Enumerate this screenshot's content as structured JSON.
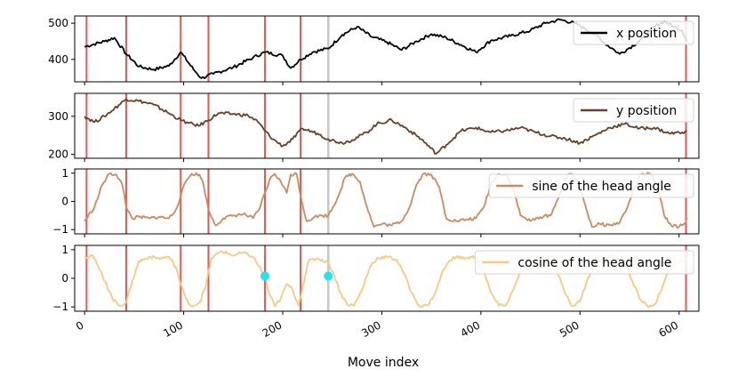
{
  "chart_data": {
    "type": "line",
    "xlabel": "Move index",
    "xlim": [
      -10,
      620
    ],
    "xticks": [
      0,
      100,
      200,
      300,
      400,
      500,
      600
    ],
    "xtick_labels": [
      "0",
      "100",
      "200",
      "300",
      "400",
      "500",
      "600"
    ],
    "xtick_rotation_deg": 30,
    "vlines": {
      "red": {
        "color": "#e8413c",
        "x": [
          2,
          42,
          97,
          125,
          182,
          218,
          607
        ]
      },
      "gray": {
        "color": "#c8c8c8",
        "x": [
          246
        ]
      }
    },
    "panels": [
      {
        "series_name": "x position",
        "color": "#000000",
        "ylim": [
          338,
          520
        ],
        "yticks": [
          400,
          500
        ],
        "ytick_labels": [
          "400",
          "500"
        ],
        "legend_position": "upper-right",
        "points": [
          [
            0,
            435
          ],
          [
            20,
            450
          ],
          [
            30,
            460
          ],
          [
            42,
            415
          ],
          [
            55,
            380
          ],
          [
            70,
            372
          ],
          [
            85,
            382
          ],
          [
            97,
            420
          ],
          [
            110,
            372
          ],
          [
            118,
            348
          ],
          [
            130,
            360
          ],
          [
            150,
            378
          ],
          [
            170,
            405
          ],
          [
            182,
            420
          ],
          [
            200,
            410
          ],
          [
            208,
            376
          ],
          [
            218,
            400
          ],
          [
            230,
            420
          ],
          [
            246,
            430
          ],
          [
            260,
            468
          ],
          [
            275,
            490
          ],
          [
            290,
            462
          ],
          [
            305,
            448
          ],
          [
            320,
            426
          ],
          [
            335,
            450
          ],
          [
            350,
            470
          ],
          [
            365,
            460
          ],
          [
            380,
            440
          ],
          [
            395,
            420
          ],
          [
            410,
            452
          ],
          [
            430,
            465
          ],
          [
            450,
            480
          ],
          [
            465,
            500
          ],
          [
            480,
            510
          ],
          [
            495,
            500
          ],
          [
            505,
            485
          ],
          [
            515,
            470
          ],
          [
            525,
            445
          ],
          [
            535,
            425
          ],
          [
            540,
            415
          ],
          [
            550,
            432
          ],
          [
            565,
            460
          ],
          [
            575,
            490
          ],
          [
            585,
            505
          ],
          [
            595,
            490
          ],
          [
            603,
            480
          ],
          [
            608,
            450
          ]
        ],
        "markers": []
      },
      {
        "series_name": "y position",
        "color": "#6b3f25",
        "ylim": [
          190,
          360
        ],
        "yticks": [
          200,
          300
        ],
        "ytick_labels": [
          "200",
          "300"
        ],
        "legend_position": "upper-right",
        "points": [
          [
            0,
            300
          ],
          [
            10,
            285
          ],
          [
            20,
            300
          ],
          [
            30,
            320
          ],
          [
            42,
            345
          ],
          [
            55,
            340
          ],
          [
            70,
            330
          ],
          [
            85,
            308
          ],
          [
            97,
            290
          ],
          [
            105,
            282
          ],
          [
            115,
            275
          ],
          [
            125,
            290
          ],
          [
            135,
            308
          ],
          [
            150,
            306
          ],
          [
            165,
            302
          ],
          [
            175,
            285
          ],
          [
            182,
            262
          ],
          [
            190,
            240
          ],
          [
            200,
            222
          ],
          [
            210,
            240
          ],
          [
            220,
            268
          ],
          [
            235,
            255
          ],
          [
            246,
            240
          ],
          [
            260,
            230
          ],
          [
            270,
            238
          ],
          [
            285,
            258
          ],
          [
            295,
            280
          ],
          [
            310,
            290
          ],
          [
            325,
            268
          ],
          [
            340,
            240
          ],
          [
            355,
            202
          ],
          [
            365,
            225
          ],
          [
            380,
            262
          ],
          [
            395,
            270
          ],
          [
            410,
            258
          ],
          [
            425,
            262
          ],
          [
            440,
            270
          ],
          [
            455,
            258
          ],
          [
            470,
            248
          ],
          [
            485,
            242
          ],
          [
            500,
            230
          ],
          [
            515,
            250
          ],
          [
            530,
            270
          ],
          [
            545,
            280
          ],
          [
            560,
            268
          ],
          [
            575,
            270
          ],
          [
            590,
            255
          ],
          [
            603,
            258
          ],
          [
            608,
            262
          ]
        ],
        "markers": []
      },
      {
        "series_name": "sine of the head angle",
        "color": "#d0895a",
        "ylim": [
          -1.15,
          1.15
        ],
        "yticks": [
          -1,
          0,
          1
        ],
        "ytick_labels": [
          "−1",
          "0",
          "1"
        ],
        "legend_position": "upper-right",
        "points": [
          [
            0,
            -0.7
          ],
          [
            10,
            -0.2
          ],
          [
            18,
            0.6
          ],
          [
            25,
            0.98
          ],
          [
            32,
            0.95
          ],
          [
            38,
            0.6
          ],
          [
            42,
            -0.2
          ],
          [
            48,
            -0.6
          ],
          [
            55,
            -0.55
          ],
          [
            65,
            -0.6
          ],
          [
            75,
            -0.55
          ],
          [
            85,
            -0.6
          ],
          [
            92,
            -0.3
          ],
          [
            97,
            0.2
          ],
          [
            102,
            0.7
          ],
          [
            108,
            0.98
          ],
          [
            116,
            0.95
          ],
          [
            120,
            0.6
          ],
          [
            125,
            -0.3
          ],
          [
            132,
            -0.85
          ],
          [
            140,
            -0.6
          ],
          [
            150,
            -0.5
          ],
          [
            160,
            -0.45
          ],
          [
            170,
            -0.6
          ],
          [
            176,
            -0.3
          ],
          [
            182,
            0.3
          ],
          [
            188,
            0.85
          ],
          [
            192,
            0.98
          ],
          [
            198,
            0.7
          ],
          [
            204,
            0.3
          ],
          [
            208,
            0.95
          ],
          [
            214,
            0.98
          ],
          [
            218,
            0.2
          ],
          [
            224,
            -0.7
          ],
          [
            232,
            -0.55
          ],
          [
            240,
            -0.5
          ],
          [
            246,
            -0.5
          ],
          [
            255,
            0.1
          ],
          [
            263,
            0.85
          ],
          [
            270,
            0.98
          ],
          [
            278,
            0.7
          ],
          [
            285,
            -0.2
          ],
          [
            292,
            -0.9
          ],
          [
            300,
            -0.8
          ],
          [
            310,
            -0.85
          ],
          [
            320,
            -0.7
          ],
          [
            328,
            -0.2
          ],
          [
            335,
            0.6
          ],
          [
            342,
            0.98
          ],
          [
            350,
            0.95
          ],
          [
            358,
            0.5
          ],
          [
            365,
            -0.6
          ],
          [
            375,
            -0.7
          ],
          [
            385,
            -0.65
          ],
          [
            395,
            -0.6
          ],
          [
            403,
            -0.2
          ],
          [
            410,
            0.6
          ],
          [
            418,
            0.98
          ],
          [
            426,
            0.95
          ],
          [
            433,
            0.4
          ],
          [
            440,
            -0.5
          ],
          [
            450,
            -0.7
          ],
          [
            460,
            -0.55
          ],
          [
            470,
            -0.5
          ],
          [
            478,
            0.1
          ],
          [
            485,
            0.8
          ],
          [
            490,
            0.98
          ],
          [
            498,
            0.7
          ],
          [
            505,
            -0.1
          ],
          [
            512,
            -0.9
          ],
          [
            520,
            -0.8
          ],
          [
            530,
            -0.85
          ],
          [
            540,
            -0.75
          ],
          [
            548,
            -0.2
          ],
          [
            555,
            0.5
          ],
          [
            562,
            0.95
          ],
          [
            570,
            0.98
          ],
          [
            578,
            0.6
          ],
          [
            585,
            -0.5
          ],
          [
            592,
            -0.85
          ],
          [
            600,
            -0.9
          ],
          [
            605,
            -0.8
          ],
          [
            608,
            -0.6
          ]
        ],
        "markers": []
      },
      {
        "series_name": "cosine of the head angle",
        "color": "#fdc87e",
        "ylim": [
          -1.15,
          1.15
        ],
        "yticks": [
          -1,
          0,
          1
        ],
        "ytick_labels": [
          "−1",
          "0",
          "1"
        ],
        "legend_position": "upper-right",
        "points": [
          [
            0,
            0.75
          ],
          [
            8,
            0.8
          ],
          [
            15,
            0.3
          ],
          [
            22,
            -0.2
          ],
          [
            28,
            -0.7
          ],
          [
            35,
            -0.95
          ],
          [
            42,
            -0.85
          ],
          [
            48,
            -0.1
          ],
          [
            55,
            0.6
          ],
          [
            65,
            0.75
          ],
          [
            75,
            0.7
          ],
          [
            85,
            0.75
          ],
          [
            92,
            0.4
          ],
          [
            97,
            -0.2
          ],
          [
            102,
            -0.7
          ],
          [
            108,
            -0.98
          ],
          [
            116,
            -0.85
          ],
          [
            122,
            -0.3
          ],
          [
            128,
            0.7
          ],
          [
            138,
            0.95
          ],
          [
            150,
            0.8
          ],
          [
            160,
            0.9
          ],
          [
            170,
            0.75
          ],
          [
            178,
            0.3
          ],
          [
            182,
            0.08
          ],
          [
            186,
            -0.5
          ],
          [
            192,
            -0.98
          ],
          [
            198,
            -0.7
          ],
          [
            204,
            -0.2
          ],
          [
            210,
            -0.4
          ],
          [
            216,
            -0.95
          ],
          [
            220,
            -0.3
          ],
          [
            226,
            0.6
          ],
          [
            235,
            0.7
          ],
          [
            246,
            0.55
          ],
          [
            252,
            0.1
          ],
          [
            258,
            -0.5
          ],
          [
            265,
            -0.9
          ],
          [
            272,
            -0.95
          ],
          [
            280,
            -0.4
          ],
          [
            288,
            0.4
          ],
          [
            295,
            0.7
          ],
          [
            305,
            0.75
          ],
          [
            315,
            0.65
          ],
          [
            322,
            0.2
          ],
          [
            330,
            -0.5
          ],
          [
            338,
            -0.98
          ],
          [
            346,
            -0.95
          ],
          [
            354,
            -0.5
          ],
          [
            362,
            0.3
          ],
          [
            372,
            0.75
          ],
          [
            385,
            0.7
          ],
          [
            395,
            0.75
          ],
          [
            403,
            0.2
          ],
          [
            410,
            -0.5
          ],
          [
            418,
            -0.95
          ],
          [
            426,
            -0.9
          ],
          [
            434,
            -0.3
          ],
          [
            442,
            0.5
          ],
          [
            452,
            0.75
          ],
          [
            462,
            0.7
          ],
          [
            472,
            0.6
          ],
          [
            480,
            0.0
          ],
          [
            486,
            -0.6
          ],
          [
            492,
            -0.98
          ],
          [
            500,
            -0.8
          ],
          [
            508,
            0.0
          ],
          [
            516,
            0.6
          ],
          [
            525,
            0.7
          ],
          [
            535,
            0.75
          ],
          [
            545,
            0.55
          ],
          [
            553,
            -0.1
          ],
          [
            560,
            -0.7
          ],
          [
            568,
            -0.98
          ],
          [
            576,
            -0.9
          ],
          [
            584,
            -0.2
          ],
          [
            592,
            0.4
          ],
          [
            600,
            0.6
          ],
          [
            608,
            0.65
          ]
        ],
        "markers": [
          {
            "x": 182,
            "y": 0.08,
            "color": "#1ee6ee"
          },
          {
            "x": 246,
            "y": 0.08,
            "color": "#1ee6ee"
          }
        ]
      }
    ]
  }
}
